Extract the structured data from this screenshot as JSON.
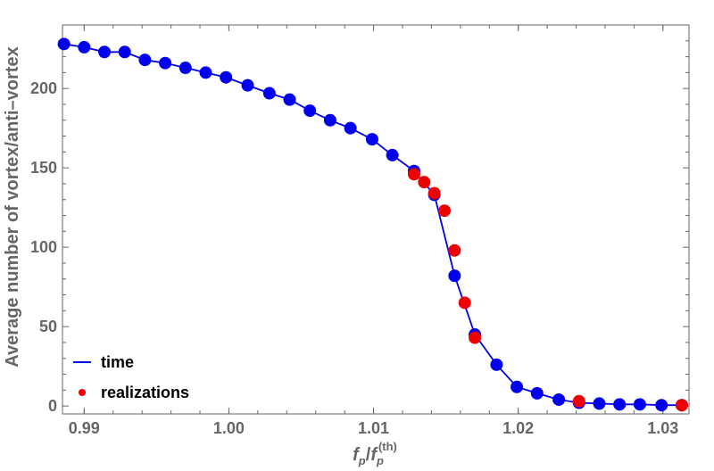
{
  "chart_data": {
    "type": "scatter",
    "title": "",
    "xlabel": {
      "base": "f",
      "sub1": "p",
      "slash": "/",
      "base2": "f",
      "sub2": "p",
      "sup2": "(th)"
    },
    "ylabel": "Average number of vortex/anti–vortex",
    "xlim": [
      0.9885,
      1.0318
    ],
    "ylim": [
      -5,
      240
    ],
    "xticks": [
      0.99,
      1.0,
      1.01,
      1.02,
      1.03
    ],
    "xtick_labels": [
      "0.99",
      "1.00",
      "1.01",
      "1.02",
      "1.03"
    ],
    "yticks": [
      0,
      50,
      100,
      150,
      200
    ],
    "ytick_labels": [
      "0",
      "50",
      "100",
      "150",
      "200"
    ],
    "legend": {
      "position": "bottom-left",
      "entries": [
        "time",
        "realizations"
      ]
    },
    "colors": {
      "time": "#0000ee",
      "realizations": "#ee0000",
      "axis": "#666666"
    },
    "series": [
      {
        "name": "time",
        "style": "line+markers",
        "x": [
          0.9886,
          0.99,
          0.9914,
          0.9928,
          0.9942,
          0.9956,
          0.997,
          0.9984,
          0.9998,
          1.0013,
          1.0028,
          1.0042,
          1.0056,
          1.007,
          1.0084,
          1.0099,
          1.0113,
          1.0128,
          1.0142,
          1.0156,
          1.017,
          1.0185,
          1.0199,
          1.0213,
          1.0228,
          1.0242,
          1.0256,
          1.027,
          1.0284,
          1.0299,
          1.0313
        ],
        "y": [
          228,
          226,
          223,
          223,
          218,
          216,
          213,
          210,
          207,
          202,
          197,
          193,
          186,
          180,
          175,
          168,
          158,
          148,
          133,
          82,
          45,
          26,
          12,
          8,
          4,
          2,
          1.5,
          1,
          1,
          0.5,
          0.5
        ]
      },
      {
        "name": "realizations",
        "style": "markers",
        "x": [
          1.0128,
          1.0135,
          1.0142,
          1.0149,
          1.0156,
          1.0163,
          1.017,
          1.0242,
          1.0313
        ],
        "y": [
          146,
          141,
          134,
          123,
          98,
          65,
          43,
          3,
          0.5
        ]
      }
    ]
  }
}
